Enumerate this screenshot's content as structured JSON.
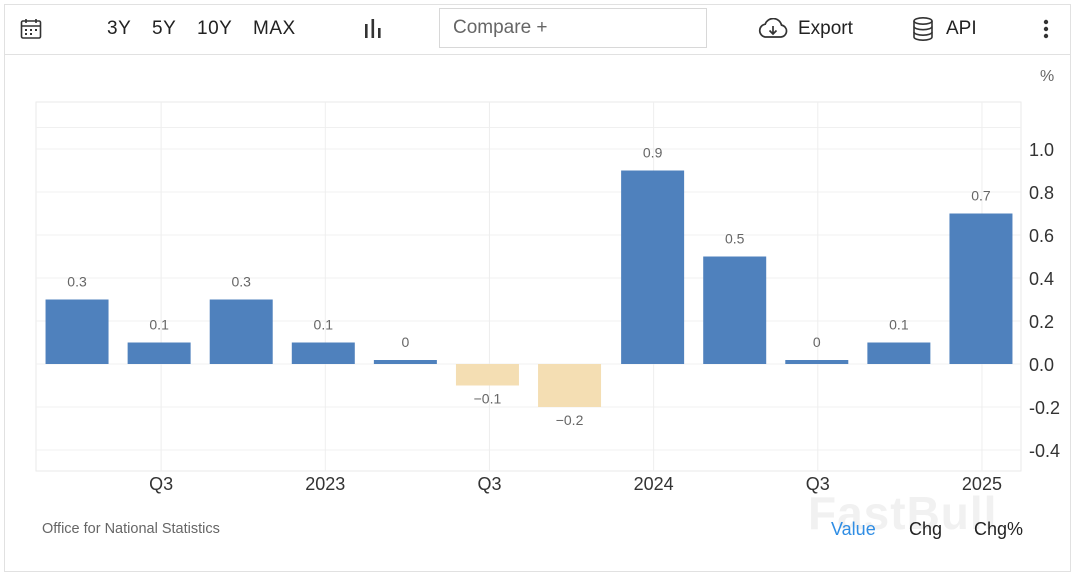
{
  "toolbar": {
    "calendar_icon": "calendar-icon",
    "ranges": [
      "3Y",
      "5Y",
      "10Y",
      "MAX"
    ],
    "chart_type_icon": "bar-chart-icon",
    "compare_placeholder": "Compare +",
    "export_icon": "cloud-download-icon",
    "export_label": "Export",
    "api_icon": "database-icon",
    "api_label": "API",
    "more_icon": "vertical-ellipsis-icon"
  },
  "unit_label": "%",
  "source_label": "Office for National Statistics",
  "watermark": "FastBull",
  "value_tabs": {
    "value": "Value",
    "chg": "Chg",
    "chg_pct": "Chg%",
    "active_color": "#2f8de4"
  },
  "colors": {
    "positive_bar": "#4f81bd",
    "negative_bar": "#f4deb3"
  },
  "chart_data": {
    "type": "bar",
    "title": "",
    "xlabel": "",
    "ylabel": "%",
    "values": [
      0.3,
      0.1,
      0.3,
      0.1,
      0,
      -0.1,
      -0.2,
      0.9,
      0.5,
      0,
      0.1,
      0.7
    ],
    "data_labels": [
      "0.3",
      "0.1",
      "0.3",
      "0.1",
      "0",
      "−0.1",
      "−0.2",
      "0.9",
      "0.5",
      "0",
      "0.1",
      "0.7"
    ],
    "x_tick_labels": [
      {
        "after_bar": 1,
        "label": "Q3"
      },
      {
        "after_bar": 3,
        "label": "2023"
      },
      {
        "after_bar": 5,
        "label": "Q3"
      },
      {
        "after_bar": 7,
        "label": "2024"
      },
      {
        "after_bar": 9,
        "label": "Q3"
      },
      {
        "after_bar": 11,
        "label": "2025"
      }
    ],
    "y_ticks": [
      1.0,
      0.8,
      0.6,
      0.4,
      0.2,
      0.0,
      -0.2,
      -0.4
    ],
    "y_tick_labels": [
      "1.0",
      "0.8",
      "0.6",
      "0.4",
      "0.2",
      "0.0",
      "-0.2",
      "-0.4"
    ],
    "ylim": [
      -0.5,
      1.2
    ],
    "grid": true,
    "y_axis_side": "right"
  }
}
